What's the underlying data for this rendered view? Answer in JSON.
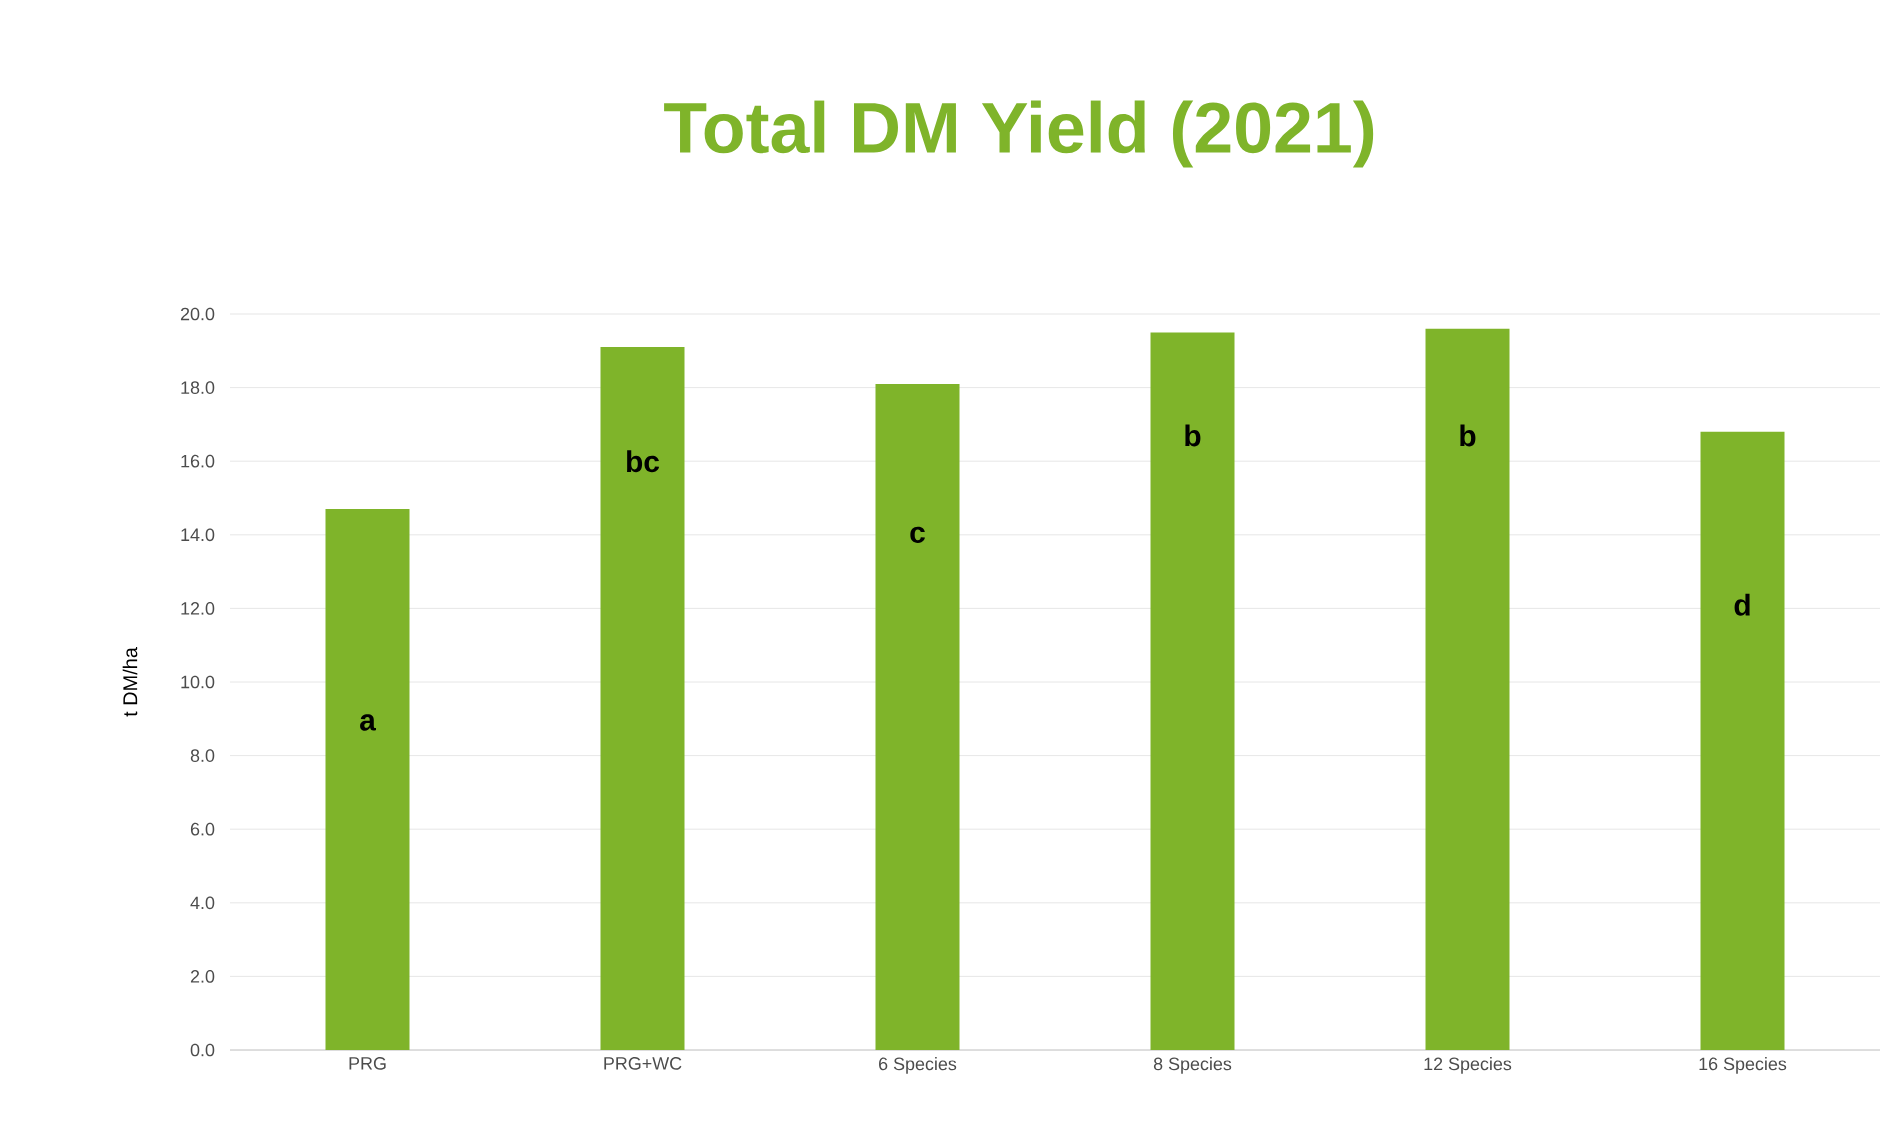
{
  "chart_data": {
    "type": "bar",
    "title": "Total DM Yield (2021)",
    "ylabel": "t DM/ha",
    "categories": [
      "PRG",
      "PRG+WC",
      "6 Species",
      "8 Species",
      "12 Species",
      "16 Species"
    ],
    "values": [
      14.7,
      19.1,
      18.1,
      19.5,
      19.6,
      16.8
    ],
    "color": "#7fb42a",
    "ylim": [
      0,
      20
    ],
    "yticks": [
      {
        "value": 0,
        "label": "0.0"
      },
      {
        "value": 2,
        "label": "2.0"
      },
      {
        "value": 4,
        "label": "4.0"
      },
      {
        "value": 6,
        "label": "6.0"
      },
      {
        "value": 8,
        "label": "8.0"
      },
      {
        "value": 10,
        "label": "10.0"
      },
      {
        "value": 12,
        "label": "12.0"
      },
      {
        "value": 14,
        "label": "14.0"
      },
      {
        "value": 16,
        "label": "16.0"
      },
      {
        "value": 18,
        "label": "18.0"
      },
      {
        "value": 20,
        "label": "20.0"
      }
    ],
    "grid": "y",
    "annotations": [
      "a",
      "bc",
      "c",
      "b",
      "b",
      "d"
    ]
  }
}
